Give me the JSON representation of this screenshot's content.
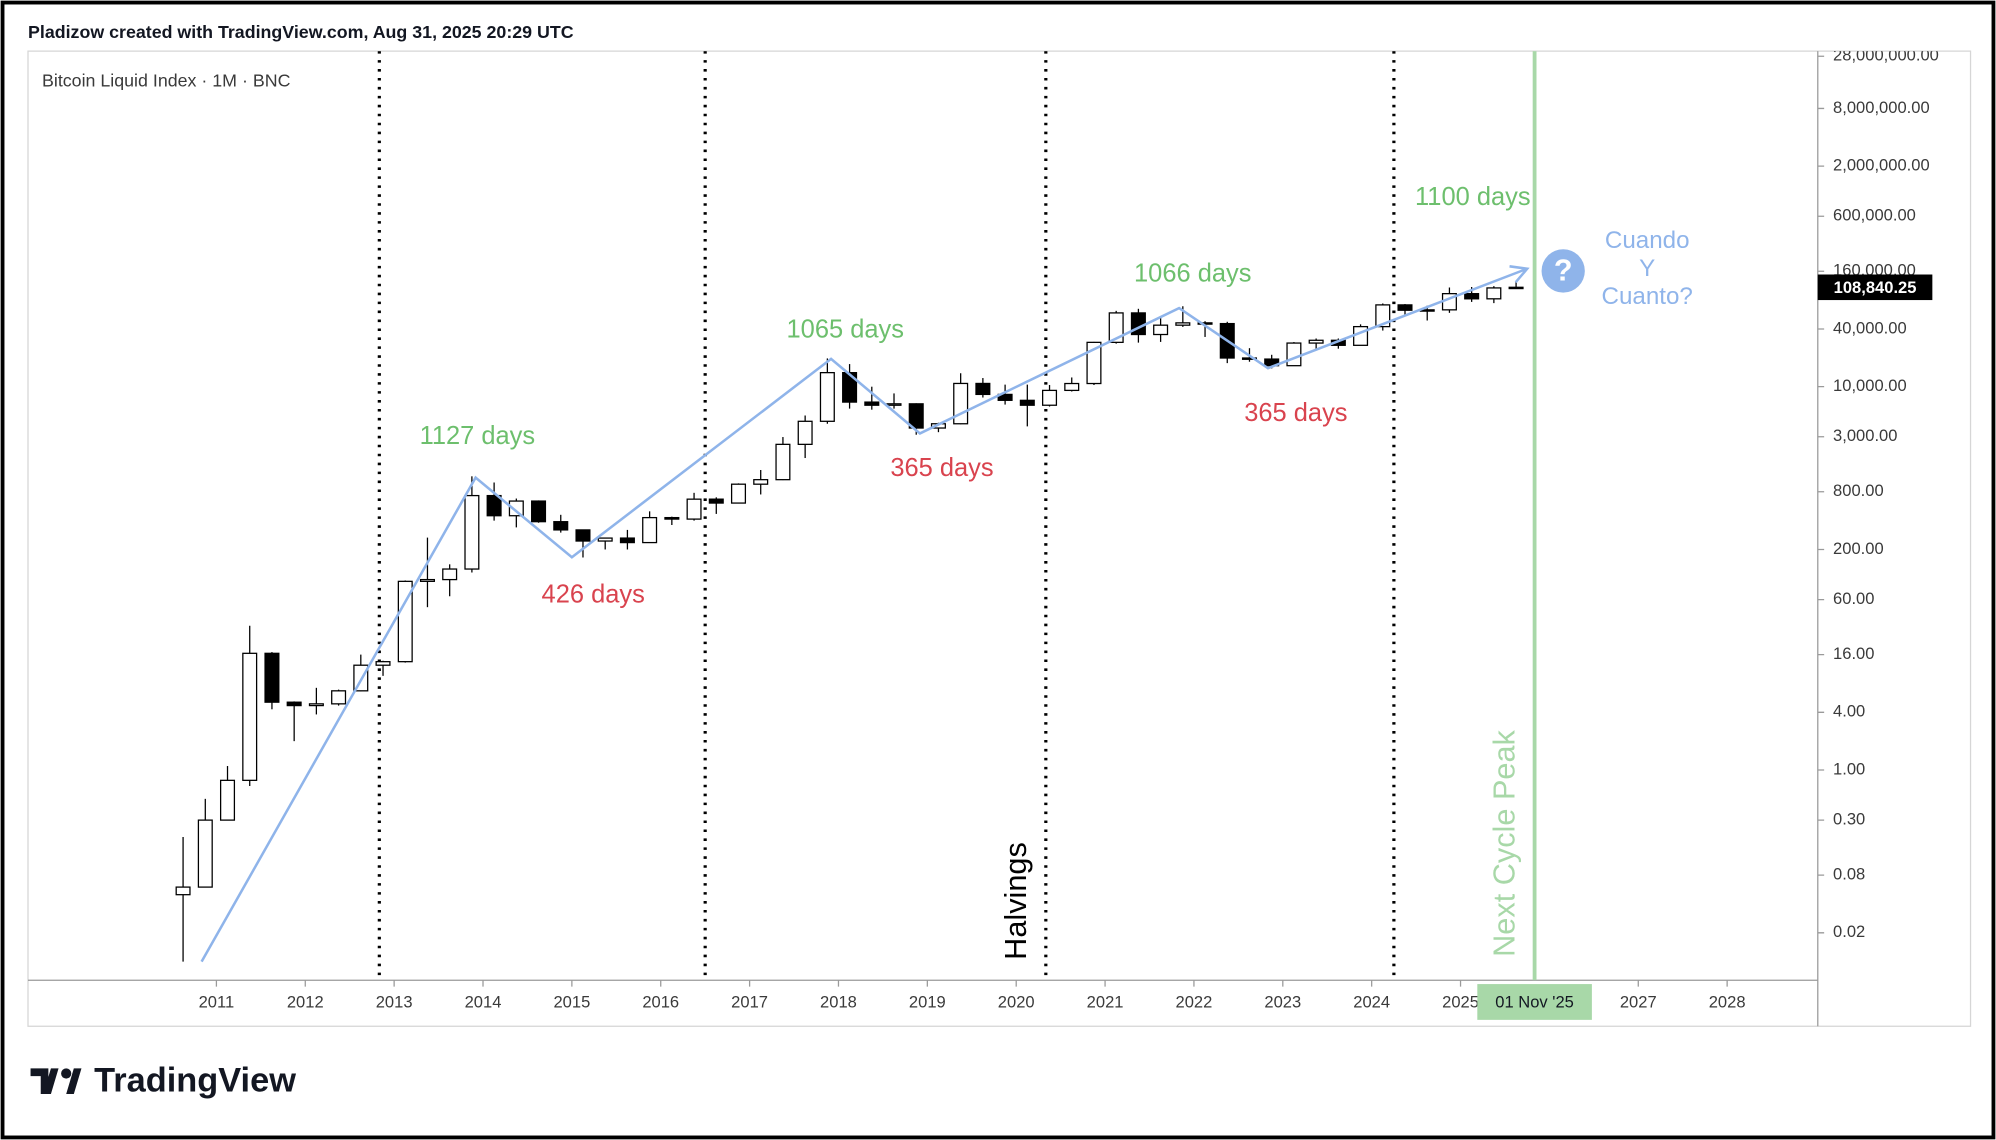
{
  "header": "Pladizow created with TradingView.com, Aug 31, 2025 20:29 UTC",
  "footer": "TradingView",
  "chart_data": {
    "type": "candlestick",
    "title": "Bitcoin Liquid Index · 1M · BNC",
    "log_scale": true,
    "up_color": "#ffffff",
    "down_color": "#000000",
    "x": [
      "2010-07",
      "2010-10",
      "2011-01",
      "2011-04",
      "2011-07",
      "2011-10",
      "2012-01",
      "2012-04",
      "2012-07",
      "2012-10",
      "2013-01",
      "2013-04",
      "2013-07",
      "2013-10",
      "2014-01",
      "2014-04",
      "2014-07",
      "2014-10",
      "2015-01",
      "2015-04",
      "2015-07",
      "2015-10",
      "2016-01",
      "2016-04",
      "2016-07",
      "2016-10",
      "2017-01",
      "2017-04",
      "2017-07",
      "2017-10",
      "2018-01",
      "2018-04",
      "2018-07",
      "2018-10",
      "2019-01",
      "2019-04",
      "2019-07",
      "2019-10",
      "2020-01",
      "2020-04",
      "2020-07",
      "2020-10",
      "2021-01",
      "2021-04",
      "2021-07",
      "2021-10",
      "2022-01",
      "2022-04",
      "2022-07",
      "2022-10",
      "2023-01",
      "2023-04",
      "2023-07",
      "2023-10",
      "2024-01",
      "2024-04",
      "2024-07",
      "2024-10",
      "2025-01",
      "2025-04",
      "2025-07"
    ],
    "open": [
      0.05,
      0.06,
      0.3,
      0.78,
      16.5,
      5.1,
      4.7,
      4.9,
      6.7,
      12.4,
      13.5,
      93,
      97,
      125,
      730,
      450,
      640,
      390,
      320,
      245,
      263,
      236,
      430,
      415,
      670,
      610,
      960,
      1070,
      2500,
      4350,
      14000,
      6900,
      6400,
      6620,
      3700,
      4100,
      10800,
      8300,
      7200,
      6400,
      9140,
      10780,
      28990,
      58800,
      35000,
      43800,
      46300,
      45500,
      19900,
      19400,
      16550,
      28500,
      30470,
      27000,
      42300,
      71300,
      62700,
      63300,
      93400,
      82500,
      107200
    ],
    "high": [
      0.2,
      0.5,
      1.1,
      32,
      17,
      5.2,
      7.2,
      6.9,
      16,
      13.8,
      95,
      266,
      140,
      1160,
      1000,
      680,
      650,
      460,
      320,
      260,
      320,
      500,
      440,
      780,
      700,
      980,
      1350,
      2980,
      5000,
      19700,
      17200,
      9990,
      8500,
      6700,
      4200,
      13800,
      12300,
      10500,
      10500,
      10400,
      12470,
      29300,
      61800,
      64900,
      52900,
      69000,
      48200,
      47500,
      25200,
      21500,
      29200,
      31800,
      31800,
      44700,
      73800,
      72800,
      70000,
      108300,
      109600,
      111900,
      124400
    ],
    "low": [
      0.01,
      0.06,
      0.3,
      0.68,
      4.3,
      2.0,
      3.8,
      4.7,
      6.6,
      9.6,
      13.2,
      50,
      65,
      115,
      400,
      340,
      380,
      300,
      165,
      200,
      200,
      235,
      360,
      400,
      470,
      605,
      750,
      1060,
      1800,
      4100,
      5900,
      5750,
      5900,
      3150,
      3350,
      4050,
      7700,
      6500,
      3850,
      6200,
      8900,
      10400,
      28100,
      28800,
      29300,
      42000,
      33000,
      17600,
      18200,
      15500,
      16500,
      24800,
      24900,
      26900,
      38500,
      56500,
      49000,
      58900,
      76600,
      74400,
      105300
    ],
    "close": [
      0.06,
      0.3,
      0.78,
      16.5,
      5.1,
      4.7,
      4.9,
      6.7,
      12.4,
      13.5,
      93,
      97,
      125,
      730,
      450,
      640,
      390,
      320,
      245,
      263,
      236,
      430,
      415,
      670,
      610,
      960,
      1070,
      2500,
      4350,
      14000,
      6900,
      6400,
      6620,
      3700,
      4100,
      10800,
      8300,
      7200,
      6400,
      9140,
      10780,
      28990,
      58800,
      35000,
      43800,
      46300,
      45500,
      19900,
      19400,
      16550,
      28500,
      30470,
      27000,
      42300,
      71300,
      62700,
      63300,
      93400,
      82500,
      107200,
      108840.25
    ],
    "price_label": {
      "value": 108840.25,
      "label": "108,840.25"
    },
    "xlim": [
      2008.88,
      2029.02
    ],
    "xticks": [
      2011,
      2012,
      2013,
      2014,
      2015,
      2016,
      2017,
      2018,
      2019,
      2020,
      2021,
      2022,
      2023,
      2024,
      2025,
      2027,
      2028
    ],
    "ylim": [
      0.0064,
      31700000
    ],
    "yticks": [
      0.02,
      0.08,
      {
        "value": 0.3,
        "label": "0.30"
      },
      {
        "value": 1,
        "label": "1.00"
      },
      {
        "value": 4,
        "label": "4.00"
      },
      {
        "value": 16,
        "label": "16.00"
      },
      {
        "value": 60,
        "label": "60.00"
      },
      {
        "value": 200,
        "label": "200.00"
      },
      {
        "value": 800,
        "label": "800.00"
      },
      {
        "value": 3000,
        "label": "3,000.00"
      },
      {
        "value": 10000,
        "label": "10,000.00"
      },
      {
        "value": 40000,
        "label": "40,000.00"
      },
      {
        "value": 160000,
        "label": "160,000.00"
      },
      {
        "value": 600000,
        "label": "600,000.00"
      },
      {
        "value": 2000000,
        "label": "2,000,000.00"
      },
      {
        "value": 8000000,
        "label": "8,000,000.00"
      },
      {
        "value": 28000000,
        "label": "28,000,000.00"
      }
    ],
    "halvings": {
      "label": "Halvings",
      "x": [
        "2012-11",
        "2016-07",
        "2020-05",
        "2024-04"
      ]
    },
    "next_peak": {
      "label": "Next Cycle Peak",
      "x": "2025-11",
      "date_label": "01 Nov '25",
      "color": "#a8d8a8"
    },
    "trend": {
      "color": "#8fb4ea",
      "x": [
        "2010-11",
        "2013-12",
        "2015-01",
        "2017-12",
        "2018-12",
        "2021-11",
        "2022-11",
        "2025-10"
      ],
      "values": [
        0.01,
        1124,
        166,
        19500,
        3250,
        66000,
        15600,
        170000
      ]
    },
    "annotations": [
      {
        "text": "1127 days",
        "color": "#6dbf6d"
      },
      {
        "text": "426 days",
        "color": "#d9434e"
      },
      {
        "text": "1065 days",
        "color": "#6dbf6d"
      },
      {
        "text": "365 days",
        "color": "#d9434e"
      },
      {
        "text": "1066 days",
        "color": "#6dbf6d"
      },
      {
        "text": "365 days",
        "color": "#d9434e"
      },
      {
        "text": "1100 days",
        "color": "#6dbf6d"
      }
    ],
    "question": {
      "icon": "?",
      "lines": [
        "Cuando",
        "Y",
        "Cuanto?"
      ],
      "color": "#8fb4ea"
    }
  }
}
